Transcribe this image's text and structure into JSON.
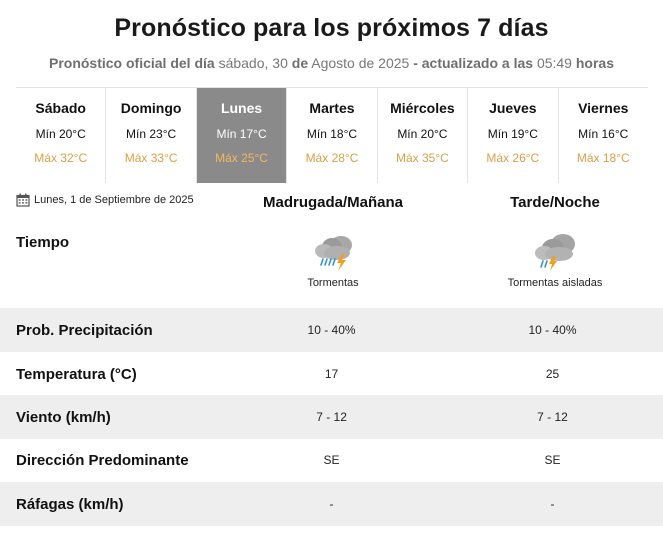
{
  "header": {
    "title": "Pronóstico para los próximos 7 días",
    "subtitle_prefix": "Pronóstico oficial del día",
    "subtitle_date_day": "sábado, 30",
    "subtitle_de1": "de",
    "subtitle_date_month_year": "Agosto de 2025",
    "subtitle_updated": "- actualizado a las",
    "subtitle_time": "05:49",
    "subtitle_hours": "horas"
  },
  "days": [
    {
      "name": "Sábado",
      "min": "Mín 20°C",
      "max": "Máx 32°C",
      "active": false
    },
    {
      "name": "Domingo",
      "min": "Mín 23°C",
      "max": "Máx 33°C",
      "active": false
    },
    {
      "name": "Lunes",
      "min": "Mín 17°C",
      "max": "Máx 25°C",
      "active": true
    },
    {
      "name": "Martes",
      "min": "Mín 18°C",
      "max": "Máx 28°C",
      "active": false
    },
    {
      "name": "Miércoles",
      "min": "Mín 20°C",
      "max": "Máx 35°C",
      "active": false
    },
    {
      "name": "Jueves",
      "min": "Mín 19°C",
      "max": "Máx 26°C",
      "active": false
    },
    {
      "name": "Viernes",
      "min": "Mín 16°C",
      "max": "Máx 18°C",
      "active": false
    }
  ],
  "detail": {
    "date": "Lunes, 1 de Septiembre de 2025",
    "date_icon": "calendar-icon",
    "columns": [
      "Madrugada/Mañana",
      "Tarde/Noche"
    ],
    "tiempo_label": "Tiempo",
    "weather": [
      {
        "icon": "storm-cloud-icon",
        "text": "Tormentas"
      },
      {
        "icon": "isolated-storm-cloud-icon",
        "text": "Tormentas aisladas"
      }
    ],
    "rows": [
      {
        "label": "Prob. Precipitación",
        "values": [
          "10 - 40%",
          "10 - 40%"
        ]
      },
      {
        "label": "Temperatura (°C)",
        "values": [
          "17",
          "25"
        ]
      },
      {
        "label": "Viento (km/h)",
        "values": [
          "7 - 12",
          "7 - 12"
        ]
      },
      {
        "label": "Dirección Predominante",
        "values": [
          "SE",
          "SE"
        ]
      },
      {
        "label": "Ráfagas (km/h)",
        "values": [
          "-",
          "-"
        ]
      }
    ]
  },
  "colors": {
    "active_day_bg": "#8a8a8a",
    "max_temp": "#d9a04a",
    "row_shade": "#eeeeee"
  }
}
